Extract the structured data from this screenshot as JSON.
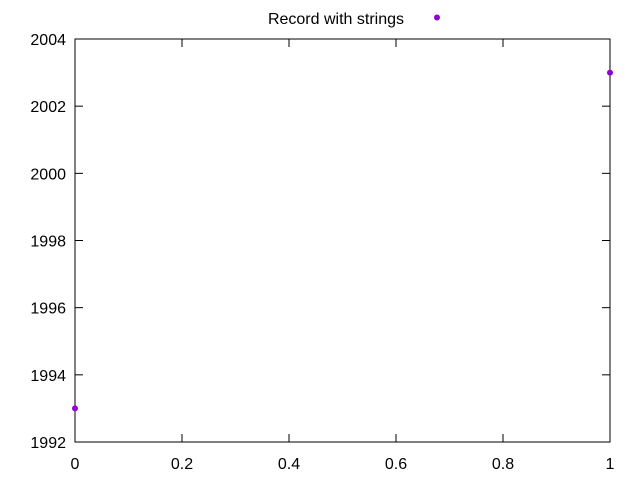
{
  "chart_data": {
    "type": "scatter",
    "xlim": [
      0,
      1
    ],
    "ylim": [
      1992,
      2004
    ],
    "x_ticks": [
      0,
      0.2,
      0.4,
      0.6,
      0.8,
      1
    ],
    "x_tick_labels": [
      "0",
      "0.2",
      "0.4",
      "0.6",
      "0.8",
      "1"
    ],
    "y_ticks": [
      1992,
      1994,
      1996,
      1998,
      2000,
      2002,
      2004
    ],
    "y_tick_labels": [
      "1992",
      "1994",
      "1996",
      "1998",
      "2000",
      "2002",
      "2004"
    ],
    "grid": false,
    "legend_position": "top-center",
    "series": [
      {
        "name": "Record with strings",
        "color": "#9400d3",
        "marker": "circle",
        "points": [
          {
            "x": 0,
            "y": 1993
          },
          {
            "x": 1,
            "y": 2003
          }
        ]
      }
    ]
  }
}
